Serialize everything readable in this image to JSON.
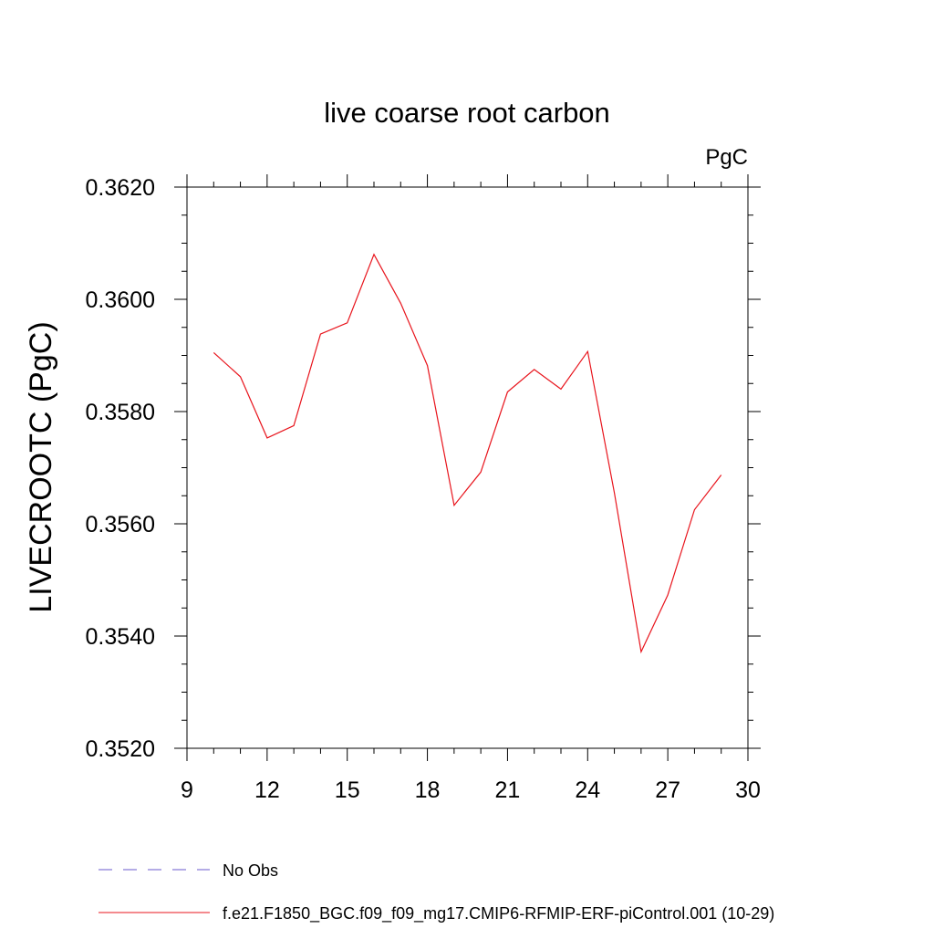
{
  "chart_data": {
    "type": "line",
    "title": "live coarse root carbon",
    "units_label": "PgC",
    "ylabel": "LIVECROOTC  (PgC)",
    "xlabel": "",
    "xlim": [
      9,
      30
    ],
    "ylim": [
      0.352,
      0.362
    ],
    "x_ticks": [
      9,
      12,
      15,
      18,
      21,
      24,
      27,
      30
    ],
    "x_tick_labels": [
      "9",
      "12",
      "15",
      "18",
      "21",
      "24",
      "27",
      "30"
    ],
    "x_minor_step": 1,
    "y_ticks": [
      0.352,
      0.354,
      0.356,
      0.358,
      0.36,
      0.362
    ],
    "y_tick_labels": [
      "0.3520",
      "0.3540",
      "0.3560",
      "0.3580",
      "0.3600",
      "0.3620"
    ],
    "y_minor_step": 0.0005,
    "grid": false,
    "legend_position": "bottom",
    "series": [
      {
        "name": "f.e21.F1850_BGC.f09_f09_mg17.CMIP6-RFMIP-ERF-piControl.001 (10-29)",
        "color": "#e8141c",
        "style": "solid",
        "x": [
          10,
          11,
          12,
          13,
          14,
          15,
          16,
          17,
          18,
          19,
          20,
          21,
          22,
          23,
          24,
          25,
          26,
          27,
          28,
          29
        ],
        "y": [
          0.35905,
          0.35862,
          0.35753,
          0.35775,
          0.35938,
          0.35958,
          0.3608,
          0.35993,
          0.35882,
          0.35633,
          0.35692,
          0.35835,
          0.35875,
          0.3584,
          0.35907,
          0.35655,
          0.35372,
          0.35473,
          0.35625,
          0.35687
        ]
      }
    ],
    "legend": [
      {
        "label": "No Obs",
        "color": "#6a5acd",
        "style": "dashed"
      },
      {
        "label": "f.e21.F1850_BGC.f09_f09_mg17.CMIP6-RFMIP-ERF-piControl.001 (10-29)",
        "color": "#e8141c",
        "style": "solid"
      }
    ]
  }
}
